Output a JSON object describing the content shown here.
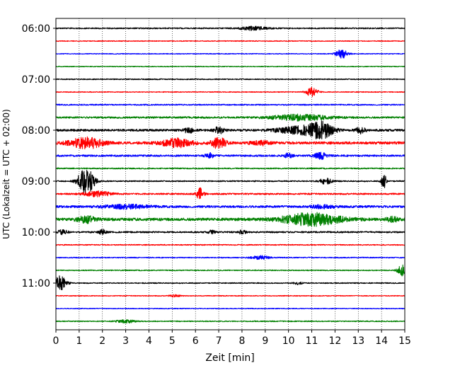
{
  "chart_data": {
    "type": "line",
    "xlabel": "Zeit  [min]",
    "ylabel": "UTC (Lokalzeit = UTC + 02:00)",
    "xlim": [
      0,
      15
    ],
    "x_ticks": [
      "0",
      "1",
      "2",
      "3",
      "4",
      "5",
      "6",
      "7",
      "8",
      "9",
      "10",
      "11",
      "12",
      "13",
      "14",
      "15"
    ],
    "y_ticks": [
      "06:00",
      "07:00",
      "08:00",
      "09:00",
      "10:00",
      "11:00"
    ],
    "grid": "vertical dotted at each minute",
    "trace_interval_min": 15,
    "trace_colors": [
      "#000000",
      "#ff0000",
      "#0000ff",
      "#008000"
    ],
    "traces": [
      {
        "start": "06:00",
        "color": "#000000",
        "noise": 0.12,
        "events": [
          {
            "t": 8.5,
            "amp": 0.35,
            "dur": 1.2
          }
        ]
      },
      {
        "start": "06:15",
        "color": "#ff0000",
        "noise": 0.08,
        "events": []
      },
      {
        "start": "06:30",
        "color": "#0000ff",
        "noise": 0.08,
        "events": [
          {
            "t": 12.3,
            "amp": 0.9,
            "dur": 0.5
          }
        ]
      },
      {
        "start": "06:45",
        "color": "#008000",
        "noise": 0.08,
        "events": []
      },
      {
        "start": "07:00",
        "color": "#000000",
        "noise": 0.1,
        "events": []
      },
      {
        "start": "07:15",
        "color": "#ff0000",
        "noise": 0.08,
        "events": [
          {
            "t": 11.0,
            "amp": 0.9,
            "dur": 0.5
          }
        ]
      },
      {
        "start": "07:30",
        "color": "#0000ff",
        "noise": 0.12,
        "events": []
      },
      {
        "start": "07:45",
        "color": "#008000",
        "noise": 0.18,
        "events": [
          {
            "t": 10.5,
            "amp": 0.55,
            "dur": 2.5
          }
        ]
      },
      {
        "start": "08:00",
        "color": "#000000",
        "noise": 0.22,
        "events": [
          {
            "t": 5.7,
            "amp": 0.55,
            "dur": 0.4
          },
          {
            "t": 7.0,
            "amp": 0.7,
            "dur": 0.4
          },
          {
            "t": 10.5,
            "amp": 0.7,
            "dur": 2.0
          },
          {
            "t": 11.4,
            "amp": 1.4,
            "dur": 1.0
          },
          {
            "t": 13.1,
            "amp": 0.6,
            "dur": 0.4
          }
        ]
      },
      {
        "start": "08:15",
        "color": "#ff0000",
        "noise": 0.25,
        "events": [
          {
            "t": 1.3,
            "amp": 1.1,
            "dur": 1.4
          },
          {
            "t": 5.2,
            "amp": 0.8,
            "dur": 1.3
          },
          {
            "t": 7.0,
            "amp": 1.1,
            "dur": 0.6
          },
          {
            "t": 8.8,
            "amp": 0.4,
            "dur": 0.8
          }
        ]
      },
      {
        "start": "08:30",
        "color": "#0000ff",
        "noise": 0.18,
        "events": [
          {
            "t": 6.6,
            "amp": 0.5,
            "dur": 0.4
          },
          {
            "t": 10.0,
            "amp": 0.45,
            "dur": 0.4
          },
          {
            "t": 11.4,
            "amp": 0.6,
            "dur": 0.6
          }
        ]
      },
      {
        "start": "08:45",
        "color": "#008000",
        "noise": 0.12,
        "events": []
      },
      {
        "start": "09:00",
        "color": "#000000",
        "noise": 0.12,
        "events": [
          {
            "t": 1.3,
            "amp": 2.6,
            "dur": 0.7
          },
          {
            "t": 11.6,
            "amp": 0.55,
            "dur": 0.6
          },
          {
            "t": 14.1,
            "amp": 1.6,
            "dur": 0.2
          }
        ]
      },
      {
        "start": "09:15",
        "color": "#ff0000",
        "noise": 0.15,
        "events": [
          {
            "t": 1.8,
            "amp": 0.5,
            "dur": 1.2
          },
          {
            "t": 6.2,
            "amp": 1.3,
            "dur": 0.3
          }
        ]
      },
      {
        "start": "09:30",
        "color": "#0000ff",
        "noise": 0.22,
        "events": [
          {
            "t": 3.0,
            "amp": 0.35,
            "dur": 2.0
          },
          {
            "t": 11.5,
            "amp": 0.3,
            "dur": 1.0
          }
        ]
      },
      {
        "start": "09:45",
        "color": "#008000",
        "noise": 0.28,
        "events": [
          {
            "t": 1.3,
            "amp": 0.6,
            "dur": 0.8
          },
          {
            "t": 11.0,
            "amp": 1.2,
            "dur": 2.5
          },
          {
            "t": 14.5,
            "amp": 0.4,
            "dur": 0.6
          }
        ]
      },
      {
        "start": "10:00",
        "color": "#000000",
        "noise": 0.15,
        "events": [
          {
            "t": 0.3,
            "amp": 0.5,
            "dur": 0.4
          },
          {
            "t": 2.0,
            "amp": 0.5,
            "dur": 0.3
          },
          {
            "t": 6.7,
            "amp": 0.35,
            "dur": 0.3
          },
          {
            "t": 8.0,
            "amp": 0.35,
            "dur": 0.4
          }
        ]
      },
      {
        "start": "10:15",
        "color": "#ff0000",
        "noise": 0.1,
        "events": []
      },
      {
        "start": "10:30",
        "color": "#0000ff",
        "noise": 0.1,
        "events": [
          {
            "t": 8.8,
            "amp": 0.35,
            "dur": 0.8
          }
        ]
      },
      {
        "start": "10:45",
        "color": "#008000",
        "noise": 0.1,
        "events": [
          {
            "t": 14.9,
            "amp": 1.1,
            "dur": 0.4
          }
        ]
      },
      {
        "start": "11:00",
        "color": "#000000",
        "noise": 0.1,
        "events": [
          {
            "t": 0.2,
            "amp": 1.5,
            "dur": 0.5
          },
          {
            "t": 10.4,
            "amp": 0.25,
            "dur": 0.4
          }
        ]
      },
      {
        "start": "11:15",
        "color": "#ff0000",
        "noise": 0.08,
        "events": [
          {
            "t": 5.1,
            "amp": 0.2,
            "dur": 0.5
          }
        ]
      },
      {
        "start": "11:30",
        "color": "#0000ff",
        "noise": 0.08,
        "events": []
      },
      {
        "start": "11:45",
        "color": "#008000",
        "noise": 0.1,
        "events": [
          {
            "t": 3.0,
            "amp": 0.3,
            "dur": 0.8
          }
        ]
      }
    ]
  }
}
